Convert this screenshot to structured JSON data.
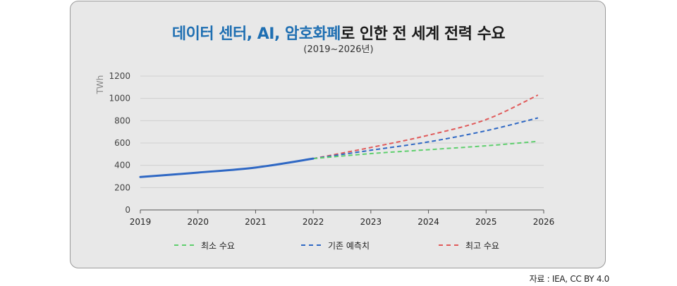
{
  "chart_data": {
    "type": "line",
    "title_highlight": "데이터 센터, AI, 암호화폐",
    "title_rest": "로 인한 전 세계 전력 수요",
    "subtitle": "(2019~2026년)",
    "ylabel": "TWh",
    "xlabel": "",
    "x": [
      2019,
      2020,
      2021,
      2022,
      2023,
      2024,
      2025,
      2026
    ],
    "ylim": [
      0,
      1200
    ],
    "yticks": [
      0,
      200,
      400,
      600,
      800,
      1000,
      1200
    ],
    "grid": true,
    "legend_position": "bottom",
    "historical": {
      "x": [
        2019,
        2020,
        2021,
        2022
      ],
      "values": [
        295,
        335,
        380,
        460
      ],
      "color": "#2f68c4"
    },
    "series": [
      {
        "name": "최소 수요",
        "x": [
          2022,
          2023,
          2024,
          2025,
          2025.9
        ],
        "values": [
          460,
          505,
          540,
          575,
          615
        ],
        "color": "#5fcf6e"
      },
      {
        "name": "기존 예측치",
        "x": [
          2022,
          2023,
          2024,
          2025,
          2025.9
        ],
        "values": [
          460,
          535,
          610,
          710,
          825
        ],
        "color": "#2f68c4"
      },
      {
        "name": "최고 수요",
        "x": [
          2022,
          2023,
          2024,
          2025,
          2025.9
        ],
        "values": [
          460,
          560,
          670,
          810,
          1030
        ],
        "color": "#e05a5a"
      }
    ]
  },
  "source": "자료 : IEA, CC BY 4.0"
}
